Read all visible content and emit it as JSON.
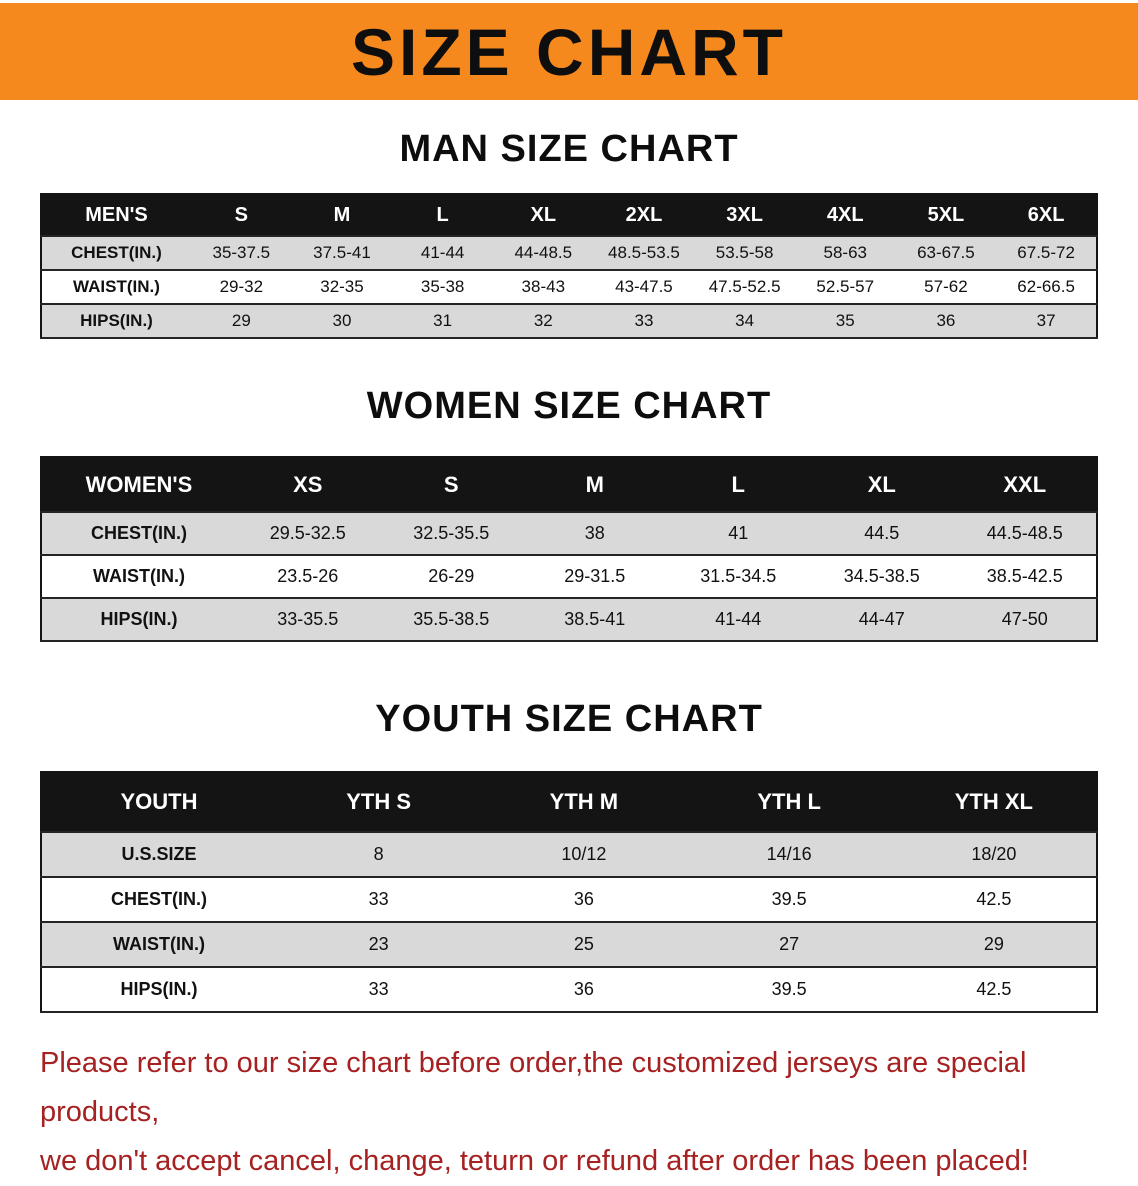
{
  "colors": {
    "banner_orange": "#f6891d",
    "table_header_black": "#141414",
    "shaded_row_gray": "#d9d9d9",
    "notice_red": "#a62121"
  },
  "banner": {
    "title": "SIZE CHART"
  },
  "sections": [
    {
      "heading": "MAN SIZE CHART",
      "table": {
        "header_label": "MEN'S",
        "columns": [
          "S",
          "M",
          "L",
          "XL",
          "2XL",
          "3XL",
          "4XL",
          "5XL",
          "6XL"
        ],
        "rows": [
          {
            "label": "CHEST(IN.)",
            "values": [
              "35-37.5",
              "37.5-41",
              "41-44",
              "44-48.5",
              "48.5-53.5",
              "53.5-58",
              "58-63",
              "63-67.5",
              "67.5-72"
            ]
          },
          {
            "label": "WAIST(IN.)",
            "values": [
              "29-32",
              "32-35",
              "35-38",
              "38-43",
              "43-47.5",
              "47.5-52.5",
              "52.5-57",
              "57-62",
              "62-66.5"
            ]
          },
          {
            "label": "HIPS(IN.)",
            "values": [
              "29",
              "30",
              "31",
              "32",
              "33",
              "34",
              "35",
              "36",
              "37"
            ]
          }
        ]
      }
    },
    {
      "heading": "WOMEN SIZE CHART",
      "table": {
        "header_label": "WOMEN'S",
        "columns": [
          "XS",
          "S",
          "M",
          "L",
          "XL",
          "XXL"
        ],
        "rows": [
          {
            "label": "CHEST(IN.)",
            "values": [
              "29.5-32.5",
              "32.5-35.5",
              "38",
              "41",
              "44.5",
              "44.5-48.5"
            ]
          },
          {
            "label": "WAIST(IN.)",
            "values": [
              "23.5-26",
              "26-29",
              "29-31.5",
              "31.5-34.5",
              "34.5-38.5",
              "38.5-42.5"
            ]
          },
          {
            "label": "HIPS(IN.)",
            "values": [
              "33-35.5",
              "35.5-38.5",
              "38.5-41",
              "41-44",
              "44-47",
              "47-50"
            ]
          }
        ]
      }
    },
    {
      "heading": "YOUTH SIZE CHART",
      "table": {
        "header_label": "YOUTH",
        "columns": [
          "YTH S",
          "YTH M",
          "YTH L",
          "YTH XL"
        ],
        "rows": [
          {
            "label": "U.S.SIZE",
            "values": [
              "8",
              "10/12",
              "14/16",
              "18/20"
            ]
          },
          {
            "label": "CHEST(IN.)",
            "values": [
              "33",
              "36",
              "39.5",
              "42.5"
            ]
          },
          {
            "label": "WAIST(IN.)",
            "values": [
              "23",
              "25",
              "27",
              "29"
            ]
          },
          {
            "label": "HIPS(IN.)",
            "values": [
              "33",
              "36",
              "39.5",
              "42.5"
            ]
          }
        ]
      }
    }
  ],
  "footer": {
    "line1": "Please refer to our size chart before order,the customized jerseys are special products,",
    "line2": "we don't accept cancel, change, teturn or refund after order has been placed!"
  }
}
